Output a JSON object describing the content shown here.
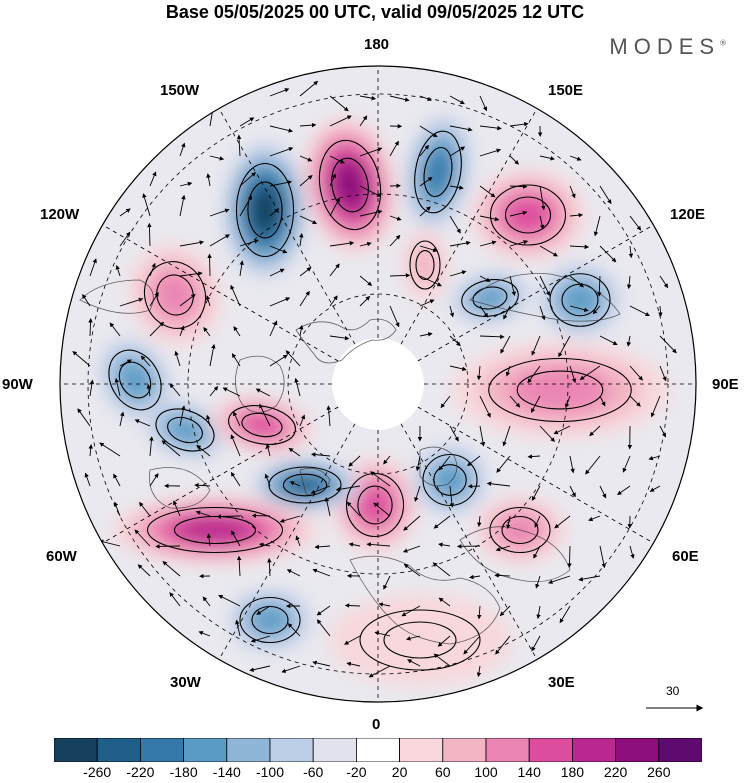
{
  "title": "Base 05/05/2025 00 UTC, valid 09/05/2025 12 UTC",
  "brand": "MODES",
  "brand_mark": "®",
  "longitude_labels": {
    "lon_180": "180",
    "lon_150e": "150E",
    "lon_120e": "120E",
    "lon_90e": "90E",
    "lon_60e": "60E",
    "lon_30e": "30E",
    "lon_0": "0",
    "lon_30w": "30W",
    "lon_60w": "60W",
    "lon_90w": "90W",
    "lon_120w": "120W",
    "lon_150w": "150W"
  },
  "reference_vector": {
    "value": "30"
  },
  "colorbar": {
    "ticks": [
      "-260",
      "-220",
      "-180",
      "-140",
      "-100",
      "-60",
      "-20",
      "20",
      "60",
      "100",
      "140",
      "180",
      "220",
      "260"
    ],
    "colors": [
      "#16405e",
      "#1f5f8a",
      "#3579ab",
      "#5a9cc6",
      "#8fb6d8",
      "#bccde6",
      "#e2e2ef",
      "#ffffff",
      "#f8d8dc",
      "#f3b4c4",
      "#eb86b4",
      "#dd4e9e",
      "#b9288f",
      "#8d0e7d",
      "#5e0a6e"
    ]
  },
  "anomaly_centers": [
    {
      "sign": "negative",
      "level": -260,
      "colorIndex": 0
    },
    {
      "sign": "positive",
      "level": 240,
      "colorIndex": 13
    },
    {
      "sign": "negative",
      "level": -180,
      "colorIndex": 2
    },
    {
      "sign": "positive",
      "level": 160,
      "colorIndex": 11
    },
    {
      "sign": "positive",
      "level": 100,
      "colorIndex": 9
    },
    {
      "sign": "negative",
      "level": -140,
      "colorIndex": 3
    },
    {
      "sign": "negative",
      "level": -160,
      "colorIndex": 3
    },
    {
      "sign": "positive",
      "level": 140,
      "colorIndex": 10
    },
    {
      "sign": "positive",
      "level": 120,
      "colorIndex": 10
    },
    {
      "sign": "negative",
      "level": -140,
      "colorIndex": 3
    },
    {
      "sign": "negative",
      "level": -160,
      "colorIndex": 3
    },
    {
      "sign": "positive",
      "level": 160,
      "colorIndex": 11
    },
    {
      "sign": "positive",
      "level": 180,
      "colorIndex": 11
    },
    {
      "sign": "negative",
      "level": -200,
      "colorIndex": 1
    },
    {
      "sign": "positive",
      "level": 220,
      "colorIndex": 12
    },
    {
      "sign": "negative",
      "level": -140,
      "colorIndex": 3
    },
    {
      "sign": "positive",
      "level": 100,
      "colorIndex": 10
    },
    {
      "sign": "negative",
      "level": -140,
      "colorIndex": 3
    },
    {
      "sign": "positive",
      "level": 40,
      "colorIndex": 8
    }
  ]
}
